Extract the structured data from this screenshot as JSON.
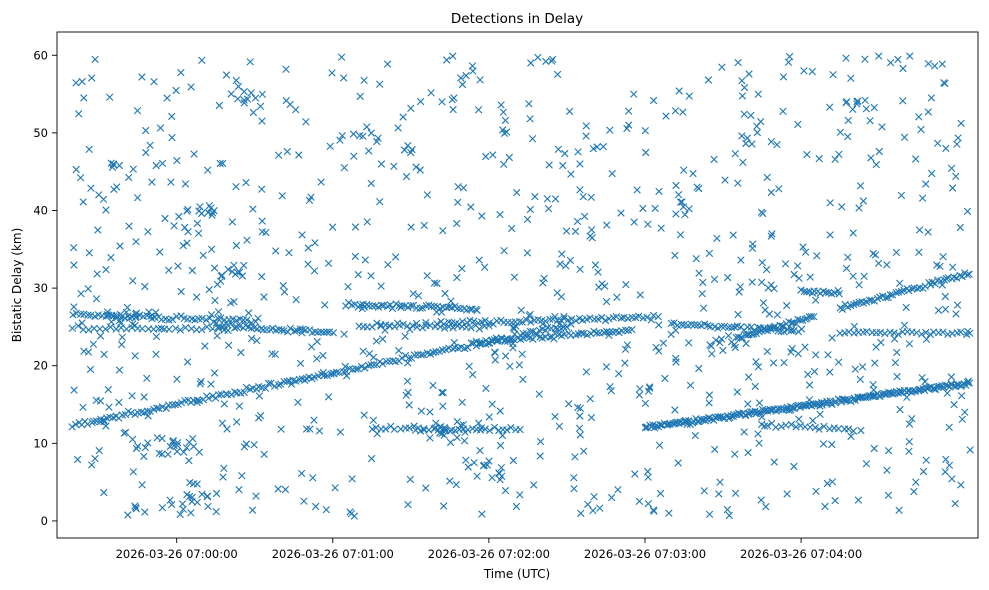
{
  "chart_data": {
    "type": "scatter",
    "title": "Detections in Delay",
    "xlabel": "Time (UTC)",
    "ylabel": "Bistatic Delay (km)",
    "marker": "x",
    "color": "#1f77b4",
    "grid": false,
    "legend": "none",
    "x_range": [
      "2026-03-26 06:59:14",
      "2026-03-26 07:05:08"
    ],
    "ylim": [
      -2.2,
      63.0
    ],
    "x_ticks": [
      "2026-03-26 07:00:00",
      "2026-03-26 07:01:00",
      "2026-03-26 07:02:00",
      "2026-03-26 07:03:00",
      "2026-03-26 07:04:00"
    ],
    "y_ticks": [
      0,
      10,
      20,
      30,
      40,
      50,
      60
    ],
    "tracks": [
      {
        "start": "2026-03-26 06:59:20",
        "end": "2026-03-26 07:02:30",
        "y_start": 12.3,
        "y_end": 25.2,
        "points": 160
      },
      {
        "start": "2026-03-26 06:59:20",
        "end": "2026-03-26 07:00:30",
        "y_start": 26.6,
        "y_end": 25.8,
        "points": 50
      },
      {
        "start": "2026-03-26 06:59:20",
        "end": "2026-03-26 07:00:20",
        "y_start": 24.8,
        "y_end": 24.7,
        "points": 30
      },
      {
        "start": "2026-03-26 07:00:15",
        "end": "2026-03-26 07:01:00",
        "y_start": 25.2,
        "y_end": 24.2,
        "points": 40
      },
      {
        "start": "2026-03-26 07:01:05",
        "end": "2026-03-26 07:01:55",
        "y_start": 27.8,
        "y_end": 27.3,
        "points": 45
      },
      {
        "start": "2026-03-26 07:01:10",
        "end": "2026-03-26 07:02:00",
        "y_start": 25.2,
        "y_end": 24.9,
        "points": 30
      },
      {
        "start": "2026-03-26 07:01:40",
        "end": "2026-03-26 07:03:05",
        "y_start": 25.4,
        "y_end": 26.3,
        "points": 60
      },
      {
        "start": "2026-03-26 07:01:55",
        "end": "2026-03-26 07:02:55",
        "y_start": 23.0,
        "y_end": 24.6,
        "points": 50
      },
      {
        "start": "2026-03-26 07:01:32",
        "end": "2026-03-26 07:02:12",
        "y_start": 11.7,
        "y_end": 11.8,
        "points": 25
      },
      {
        "start": "2026-03-26 07:01:15",
        "end": "2026-03-26 07:01:35",
        "y_start": 11.9,
        "y_end": 12.0,
        "points": 12
      },
      {
        "start": "2026-03-26 07:03:00",
        "end": "2026-03-26 07:05:05",
        "y_start": 12.0,
        "y_end": 17.8,
        "points": 200
      },
      {
        "start": "2026-03-26 07:03:10",
        "end": "2026-03-26 07:04:00",
        "y_start": 25.5,
        "y_end": 24.4,
        "points": 40
      },
      {
        "start": "2026-03-26 07:03:35",
        "end": "2026-03-26 07:04:05",
        "y_start": 23.5,
        "y_end": 26.4,
        "points": 35
      },
      {
        "start": "2026-03-26 07:03:45",
        "end": "2026-03-26 07:04:20",
        "y_start": 12.4,
        "y_end": 11.8,
        "points": 20
      },
      {
        "start": "2026-03-26 07:04:00",
        "end": "2026-03-26 07:04:15",
        "y_start": 29.6,
        "y_end": 29.3,
        "points": 15
      },
      {
        "start": "2026-03-26 07:04:15",
        "end": "2026-03-26 07:05:05",
        "y_start": 27.3,
        "y_end": 32.0,
        "points": 50
      },
      {
        "start": "2026-03-26 07:04:15",
        "end": "2026-03-26 07:05:05",
        "y_start": 24.2,
        "y_end": 24.1,
        "points": 30
      }
    ],
    "clusters": [
      {
        "x": "2026-03-26 06:59:40",
        "y": 26.2,
        "points": 12
      },
      {
        "x": "2026-03-26 06:59:50",
        "y": 9.6,
        "points": 10
      },
      {
        "x": "2026-03-26 07:00:12",
        "y": 40.0,
        "points": 10
      },
      {
        "x": "2026-03-26 07:00:10",
        "y": 2.6,
        "points": 12
      },
      {
        "x": "2026-03-26 07:00:00",
        "y": 10.0,
        "points": 10
      },
      {
        "x": "2026-03-26 07:00:25",
        "y": 54.0,
        "points": 10
      },
      {
        "x": "2026-03-26 07:00:20",
        "y": 31.5,
        "points": 10
      },
      {
        "x": "2026-03-26 07:01:12",
        "y": 49.6,
        "points": 6
      },
      {
        "x": "2026-03-26 07:01:45",
        "y": 11.8,
        "points": 10
      },
      {
        "x": "2026-03-26 07:02:00",
        "y": 7.0,
        "points": 8
      },
      {
        "x": "2026-03-26 07:03:30",
        "y": 23.0,
        "points": 10
      },
      {
        "x": "2026-03-26 07:04:20",
        "y": 53.5,
        "points": 8
      }
    ],
    "noise": {
      "points": 880,
      "x_range": [
        "2026-03-26 06:59:20",
        "2026-03-26 07:05:05"
      ],
      "y_range": [
        0.5,
        60.0
      ]
    }
  }
}
